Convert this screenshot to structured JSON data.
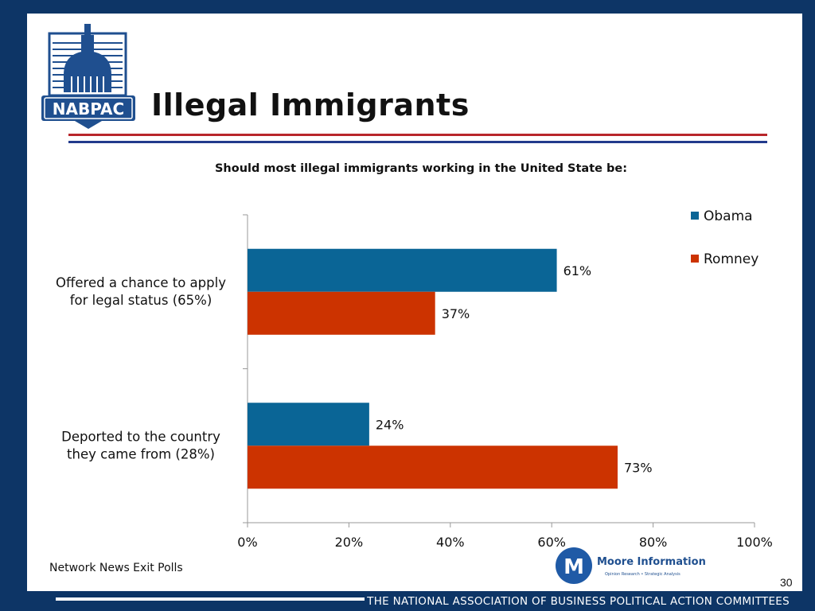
{
  "header": {
    "title": "Illegal Immigrants",
    "logo_text": "NABPAC"
  },
  "chart_subtitle": "Should most illegal immigrants working in the United State be:",
  "chart_data": {
    "type": "bar",
    "orientation": "horizontal",
    "categories": [
      "Offered a chance to apply for legal status (65%)",
      "Deported to the country they came from (28%)"
    ],
    "category_lines": [
      [
        "Offered a chance to apply",
        "for legal status (65%)"
      ],
      [
        "Deported to the country",
        "they came from (28%)"
      ]
    ],
    "series": [
      {
        "name": "Obama",
        "values": [
          61,
          24
        ],
        "labels": [
          "61%",
          "24%"
        ],
        "color": "#0a6596"
      },
      {
        "name": "Romney",
        "values": [
          37,
          73
        ],
        "labels": [
          "37%",
          "73%"
        ],
        "color": "#cc3300"
      }
    ],
    "xlim": [
      0,
      100
    ],
    "x_ticks": [
      "0%",
      "20%",
      "40%",
      "60%",
      "80%",
      "100%"
    ],
    "legend_position": "top-right",
    "grid": false
  },
  "source": "Network News Exit Polls",
  "branding": {
    "moore_name": "Moore Information",
    "moore_tagline": "Opinion Research • Strategic Analysis",
    "moore_initial": "M"
  },
  "page_number": "30",
  "footer": "THE NATIONAL ASSOCIATION OF BUSINESS POLITICAL ACTION COMMITTEES",
  "colors": {
    "navy": "#0d3566",
    "obama": "#0a6596",
    "romney": "#cc3300"
  }
}
